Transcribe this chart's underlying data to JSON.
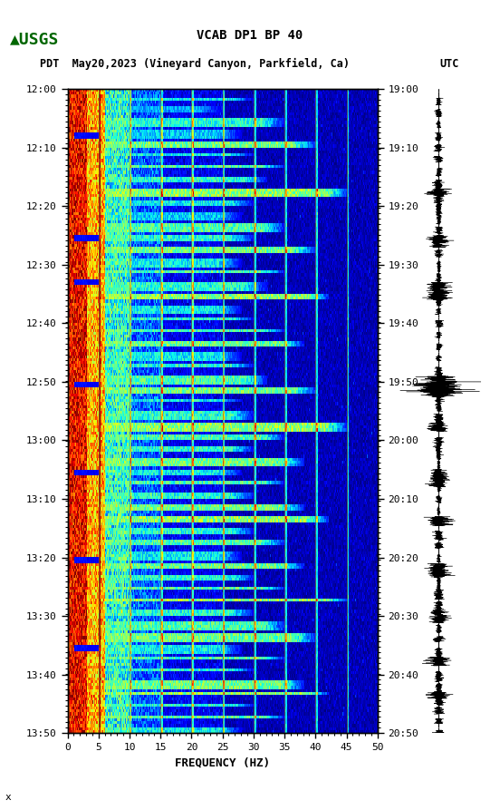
{
  "title_line1": "VCAB DP1 BP 40",
  "title_line2_left": "PDT  May20,2023 (Vineyard Canyon, Parkfield, Ca)",
  "title_line2_right": "UTC",
  "left_times": [
    "12:00",
    "12:10",
    "12:20",
    "12:30",
    "12:40",
    "12:50",
    "13:00",
    "13:10",
    "13:20",
    "13:30",
    "13:40",
    "13:50"
  ],
  "right_times": [
    "19:00",
    "19:10",
    "19:20",
    "19:30",
    "19:40",
    "19:50",
    "20:00",
    "20:10",
    "20:20",
    "20:30",
    "20:40",
    "20:50"
  ],
  "freq_min": 0,
  "freq_max": 50,
  "freq_ticks": [
    0,
    5,
    10,
    15,
    20,
    25,
    30,
    35,
    40,
    45,
    50
  ],
  "xlabel": "FREQUENCY (HZ)",
  "n_time_steps": 220,
  "n_freq_steps": 400,
  "spectrogram_cmap": "jet",
  "background_color": "#ffffff",
  "fig_width": 5.52,
  "fig_height": 8.93,
  "usgs_logo_color": "#006600",
  "vertical_line_freqs": [
    5,
    10,
    15,
    20,
    25,
    30,
    35,
    40,
    45
  ],
  "vertical_line_color": "#888833",
  "vertical_line_alpha": 0.7
}
